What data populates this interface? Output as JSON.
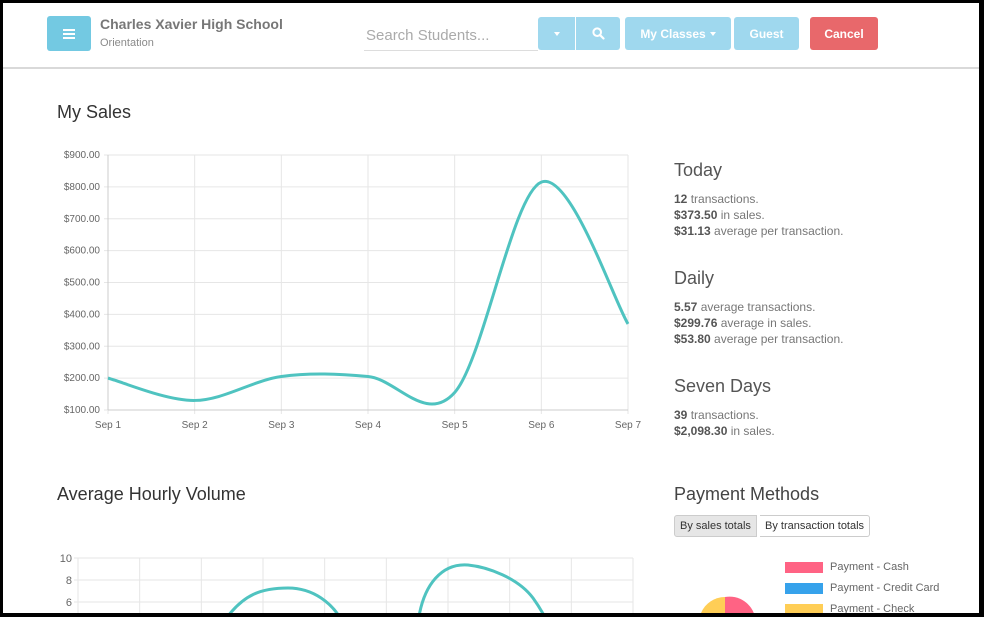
{
  "header": {
    "school_name": "Charles Xavier High School",
    "subtitle": "Orientation",
    "search_placeholder": "Search Students...",
    "my_classes_label": "My Classes",
    "guest_label": "Guest",
    "cancel_label": "Cancel",
    "accent_color": "#5bc0de",
    "cancel_color": "#e8686b"
  },
  "sales": {
    "title": "My Sales",
    "chart_data": {
      "type": "line",
      "categories": [
        "Sep 1",
        "Sep 2",
        "Sep 3",
        "Sep 4",
        "Sep 5",
        "Sep 6",
        "Sep 7"
      ],
      "values": [
        200,
        130,
        205,
        205,
        155,
        815,
        370
      ],
      "ylim": [
        100,
        900
      ],
      "yticks": [
        "$900.00",
        "$800.00",
        "$700.00",
        "$600.00",
        "$500.00",
        "$400.00",
        "$300.00",
        "$200.00",
        "$100.00"
      ],
      "grid": true,
      "line_color": "#4fc3c0"
    }
  },
  "stats": {
    "today": {
      "heading": "Today",
      "transactions_value": "12",
      "transactions_text": " transactions.",
      "sales_value": "$373.50",
      "sales_text": " in sales.",
      "avg_value": "$31.13",
      "avg_text": " average per transaction."
    },
    "daily": {
      "heading": "Daily",
      "transactions_value": "5.57",
      "transactions_text": " average transactions.",
      "sales_value": "$299.76",
      "sales_text": " average in sales.",
      "avg_value": "$53.80",
      "avg_text": " average per transaction."
    },
    "seven_days": {
      "heading": "Seven Days",
      "transactions_value": "39",
      "transactions_text": " transactions.",
      "sales_value": "$2,098.30",
      "sales_text": " in sales."
    }
  },
  "hourly": {
    "title": "Average Hourly Volume",
    "chart_data": {
      "type": "line",
      "yticks": [
        "10",
        "8",
        "6"
      ],
      "ylim": [
        0,
        10
      ],
      "grid": true,
      "line_color": "#4fc3c0"
    }
  },
  "payment": {
    "title": "Payment Methods",
    "toggle_sales": "By sales totals",
    "toggle_transactions": "By transaction totals",
    "legend": [
      {
        "label": "Payment - Cash",
        "color": "#ff6384"
      },
      {
        "label": "Payment - Credit Card",
        "color": "#36a2eb"
      },
      {
        "label": "Payment - Check",
        "color": "#ffce56"
      }
    ]
  }
}
